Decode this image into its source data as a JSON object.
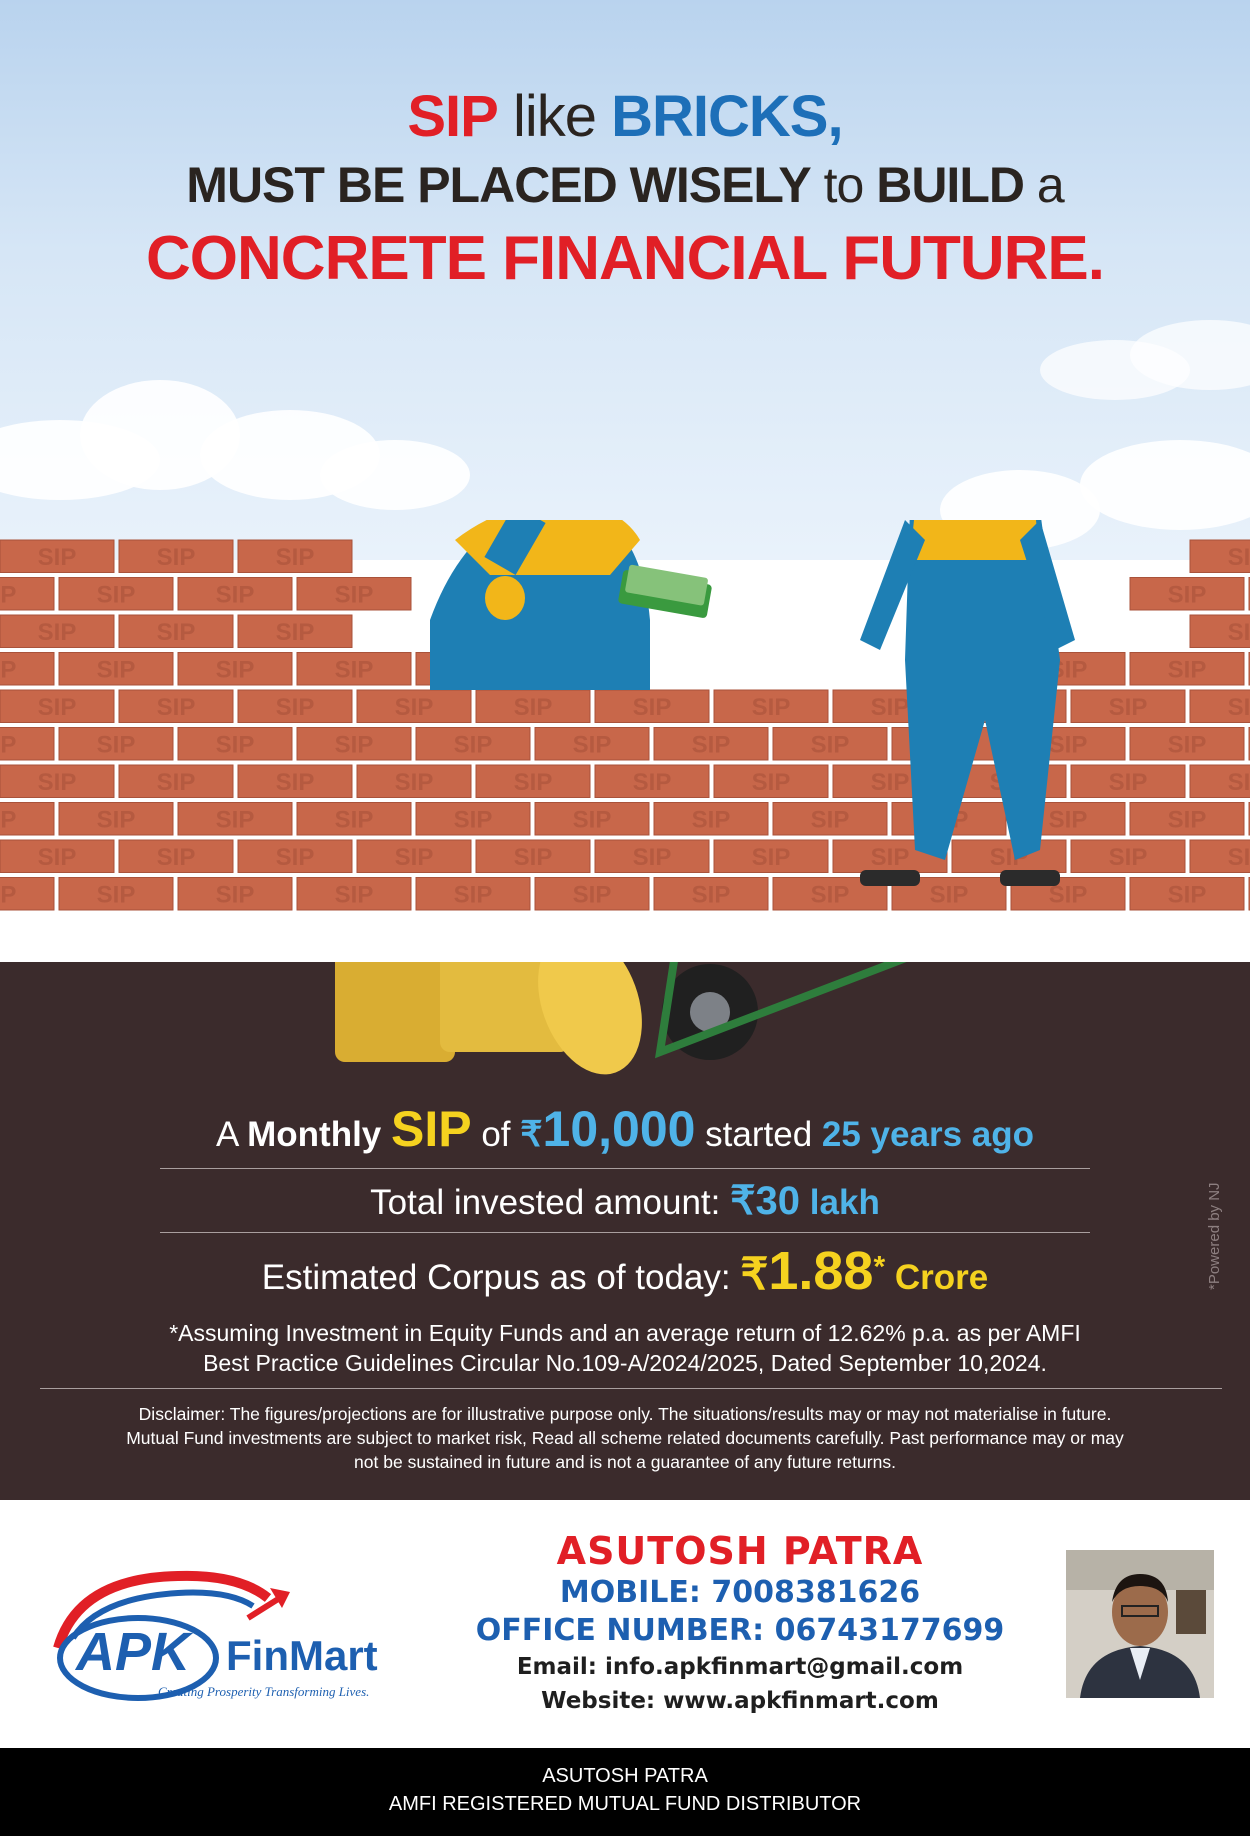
{
  "headline": {
    "line1_a": "SIP",
    "line1_b": " like ",
    "line1_c": "BRICKS,",
    "line2_a": "MUST BE PLACED WISELY",
    "line2_b": " to ",
    "line2_c": "BUILD",
    "line2_d": " a",
    "line3": "CONCRETE FINANCIAL FUTURE."
  },
  "brick_label": "SIP",
  "stats": {
    "l1_a": "A ",
    "l1_b": "Monthly ",
    "l1_c": "SIP",
    "l1_d": " of ",
    "l1_e": "₹",
    "l1_f": "10,000",
    "l1_g": " started ",
    "l1_h": "25 years ago",
    "l2_a": "Total invested amount: ",
    "l2_b": "₹30",
    "l2_c": " lakh",
    "l3_a": "Estimated Corpus as of today: ",
    "l3_b": "₹",
    "l3_c": "1.88",
    "l3_d": "*",
    "l3_e": " Crore"
  },
  "assumption_1": "*Assuming Investment in Equity Funds and an average return of 12.62% p.a. as per AMFI",
  "assumption_2": "Best Practice  Guidelines Circular No.109-A/2024/2025, Dated September 10,2024.",
  "disclaimer_1": "Disclaimer: The figures/projections are for illustrative purpose only. The situations/results may or may not materialise in future.",
  "disclaimer_2": "Mutual Fund investments are subject to market risk, Read all scheme related documents carefully. Past performance may or may",
  "disclaimer_3": "not be sustained in future and is not a guarantee of any future returns.",
  "powered_by": "*Powered by NJ",
  "logo": {
    "mark": "APK",
    "name": "FinMart",
    "tagline": "Creating Prosperity Transforming Lives."
  },
  "contact": {
    "name": "ASUTOSH PATRA",
    "mobile": "MOBILE: 7008381626",
    "office": "OFFICE NUMBER: 06743177699",
    "email": "Email: info.apkfinmart@gmail.com",
    "website": "Website: www.apkfinmart.com"
  },
  "footer": {
    "line1": "ASUTOSH PATRA",
    "line2": "AMFI REGISTERED MUTUAL FUND DISTRIBUTOR"
  },
  "colors": {
    "red": "#e11f26",
    "blue": "#1d6fb8",
    "panel": "#3b2b2c",
    "gold": "#f5d21f",
    "cyan": "#4fb3e8",
    "brick": "#c8674a"
  }
}
